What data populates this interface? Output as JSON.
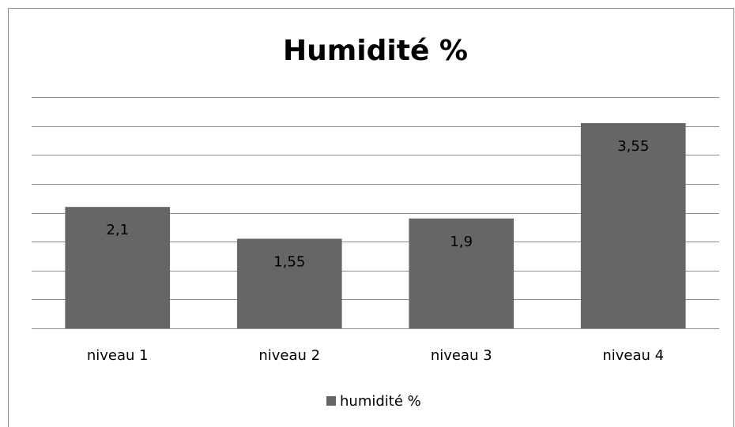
{
  "chart_data": {
    "type": "bar",
    "title": "Humidité %",
    "categories": [
      "niveau 1",
      "niveau 2",
      "niveau 3",
      "niveau 4"
    ],
    "series": [
      {
        "name": "humidité %",
        "color": "#666666",
        "values": [
          2.1,
          1.55,
          1.9,
          3.55
        ],
        "value_labels": [
          "2,1",
          "1,55",
          "1,9",
          "3,55"
        ]
      }
    ],
    "ylim": [
      0,
      4
    ],
    "yticks": [
      0,
      0.5,
      1,
      1.5,
      2,
      2.5,
      3,
      3.5,
      4
    ],
    "grid": true,
    "legend": "bottom"
  }
}
